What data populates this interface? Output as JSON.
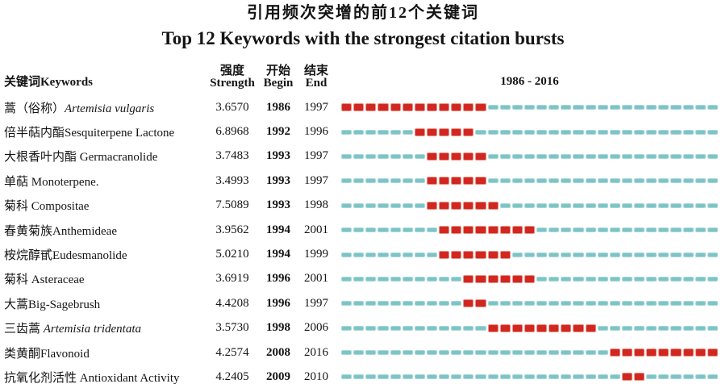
{
  "title": {
    "zh": "引用频次突增的前12个关键词",
    "en": "Top 12 Keywords with the strongest citation bursts"
  },
  "header": {
    "keywords_zh": "关键词",
    "keywords_en": "Keywords",
    "strength_zh": "强度",
    "strength_en": "Strength",
    "begin_zh": "开始",
    "begin_en": "Begin",
    "end_zh": "结束",
    "end_en": "End",
    "timeline": "1986 - 2016"
  },
  "colors": {
    "burst_segment": "#d22620",
    "timeline_segment": "#7cc4c6",
    "text": "#141414"
  },
  "chart_data": {
    "type": "table",
    "title": "Top 12 Keywords with the strongest citation bursts",
    "title_zh": "引用频次突增的前12个关键词",
    "timeline": {
      "start_year": 1986,
      "end_year": 2016
    },
    "columns": [
      "关键词 Keywords",
      "强度 Strength",
      "开始 Begin",
      "结束 End",
      "1986 - 2016"
    ],
    "rows": [
      {
        "keyword_zh": "蒿（俗称）",
        "keyword_en": "Artemisia vulgaris",
        "italic": true,
        "strength": "3.6570",
        "begin": 1986,
        "end": 1997
      },
      {
        "keyword_zh": "倍半萜内酯",
        "keyword_en": "Sesquiterpene Lactone",
        "italic": false,
        "strength": "6.8968",
        "begin": 1992,
        "end": 1996
      },
      {
        "keyword_zh": "大根香叶内酯",
        "keyword_en": " Germacranolide",
        "italic": false,
        "strength": "3.7483",
        "begin": 1993,
        "end": 1997
      },
      {
        "keyword_zh": "单萜",
        "keyword_en": " Monoterpene.",
        "italic": false,
        "strength": "3.4993",
        "begin": 1993,
        "end": 1997
      },
      {
        "keyword_zh": "菊科",
        "keyword_en": " Compositae",
        "italic": false,
        "strength": "7.5089",
        "begin": 1993,
        "end": 1998
      },
      {
        "keyword_zh": "春黄菊族",
        "keyword_en": "Anthemideae",
        "italic": false,
        "strength": "3.9562",
        "begin": 1994,
        "end": 2001
      },
      {
        "keyword_zh": "桉烷醇甙",
        "keyword_en": "Eudesmanolide",
        "italic": false,
        "strength": "5.0210",
        "begin": 1994,
        "end": 1999
      },
      {
        "keyword_zh": "菊科",
        "keyword_en": " Asteraceae",
        "italic": false,
        "strength": "3.6919",
        "begin": 1996,
        "end": 2001
      },
      {
        "keyword_zh": "大蒿",
        "keyword_en": "Big-Sagebrush",
        "italic": false,
        "strength": "4.4208",
        "begin": 1996,
        "end": 1997
      },
      {
        "keyword_zh": "三齿蒿",
        "keyword_en": " Artemisia tridentata",
        "italic": true,
        "strength": "3.5730",
        "begin": 1998,
        "end": 2006
      },
      {
        "keyword_zh": "类黄酮",
        "keyword_en": "Flavonoid",
        "italic": false,
        "strength": "4.2574",
        "begin": 2008,
        "end": 2016
      },
      {
        "keyword_zh": "抗氧化剂活性",
        "keyword_en": " Antioxidant Activity",
        "italic": false,
        "strength": "4.2405",
        "begin": 2009,
        "end": 2010
      }
    ]
  }
}
